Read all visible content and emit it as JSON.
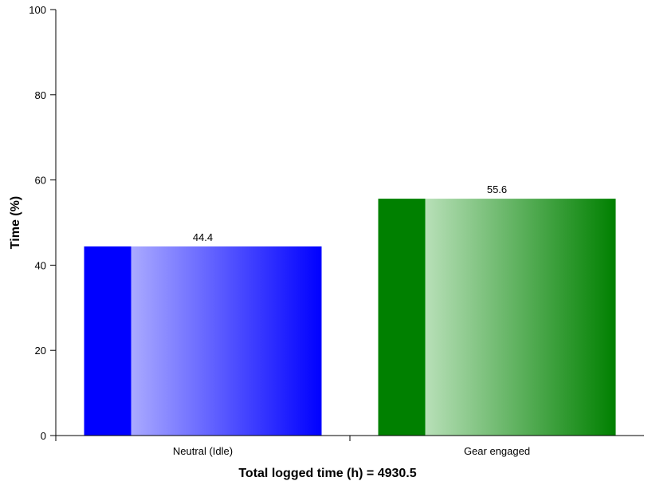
{
  "chart_data": {
    "type": "bar",
    "categories": [
      "Neutral (Idle)",
      "Gear engaged"
    ],
    "values": [
      44.4,
      55.6
    ],
    "data_labels": [
      "44.4",
      "55.6"
    ],
    "xlabel": "Total logged time (h) = 4930.5",
    "ylabel": "Time (%)",
    "ylim": [
      0,
      100
    ],
    "yticks": [
      0,
      20,
      40,
      60,
      80,
      100
    ],
    "ytick_labels": [
      "0",
      "20",
      "40",
      "60",
      "80",
      "100"
    ],
    "grid": false,
    "bar_colors": [
      {
        "dark": "#0000ff",
        "light": "#aaaaff"
      },
      {
        "dark": "#008000",
        "light": "#b8e0b8"
      }
    ]
  }
}
